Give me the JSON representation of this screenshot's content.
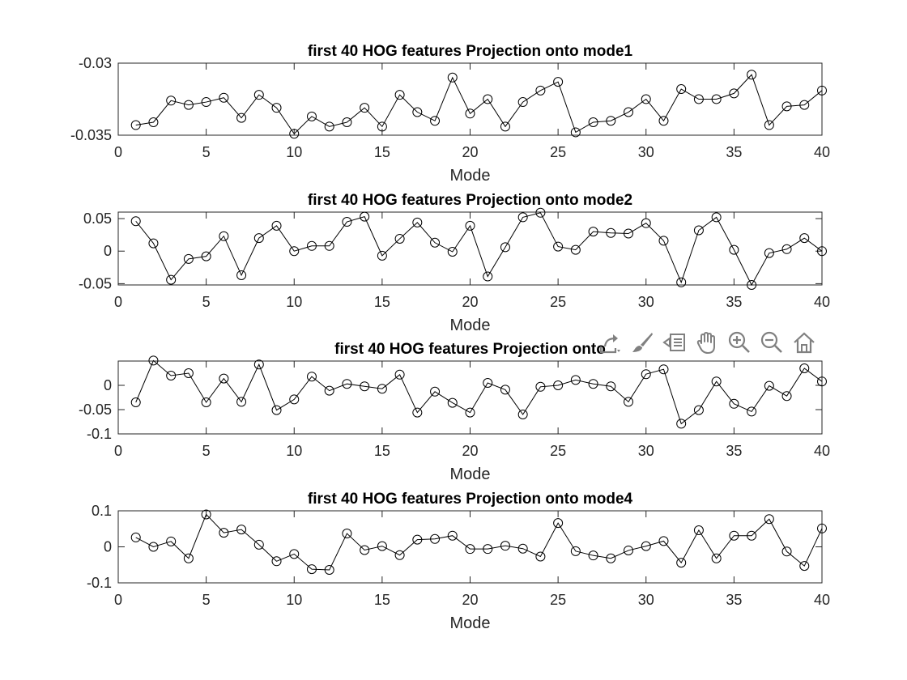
{
  "toolbar": {
    "icons": [
      "export-icon",
      "brush-icon",
      "legend-icon",
      "pan-hand-icon",
      "zoom-in-icon",
      "zoom-out-icon",
      "home-icon"
    ],
    "icon_color": "#808080"
  },
  "chart_data": [
    {
      "type": "line",
      "title": "first 40 HOG features Projection onto mode1",
      "xlabel": "Mode",
      "ylabel": "",
      "xlim": [
        0,
        40
      ],
      "ylim": [
        -0.035,
        -0.03
      ],
      "xticks": [
        0,
        5,
        10,
        15,
        20,
        25,
        30,
        35,
        40
      ],
      "yticks": [
        -0.035,
        -0.03
      ],
      "ytick_labels": [
        "-0.035",
        "-0.03"
      ],
      "marker": "circle",
      "color": "#000000",
      "x": [
        1,
        2,
        3,
        4,
        5,
        6,
        7,
        8,
        9,
        10,
        11,
        12,
        13,
        14,
        15,
        16,
        17,
        18,
        19,
        20,
        21,
        22,
        23,
        24,
        25,
        26,
        27,
        28,
        29,
        30,
        31,
        32,
        33,
        34,
        35,
        36,
        37,
        38,
        39,
        40
      ],
      "values": [
        -0.0343,
        -0.0341,
        -0.0326,
        -0.0329,
        -0.0327,
        -0.0324,
        -0.0338,
        -0.0322,
        -0.0331,
        -0.0349,
        -0.0337,
        -0.0344,
        -0.0341,
        -0.0331,
        -0.0344,
        -0.0322,
        -0.0334,
        -0.034,
        -0.031,
        -0.0335,
        -0.0325,
        -0.0344,
        -0.0327,
        -0.0319,
        -0.0313,
        -0.0348,
        -0.0341,
        -0.034,
        -0.0334,
        -0.0325,
        -0.034,
        -0.0318,
        -0.0325,
        -0.0325,
        -0.0321,
        -0.0308,
        -0.0343,
        -0.033,
        -0.0329,
        -0.0319
      ]
    },
    {
      "type": "line",
      "title": "first 40 HOG features Projection onto mode2",
      "xlabel": "Mode",
      "ylabel": "",
      "xlim": [
        0,
        40
      ],
      "ylim": [
        -0.052,
        0.06
      ],
      "xticks": [
        0,
        5,
        10,
        15,
        20,
        25,
        30,
        35,
        40
      ],
      "yticks": [
        -0.05,
        0,
        0.05
      ],
      "ytick_labels": [
        "-0.05",
        "0",
        "0.05"
      ],
      "marker": "circle",
      "color": "#000000",
      "x": [
        1,
        2,
        3,
        4,
        5,
        6,
        7,
        8,
        9,
        10,
        11,
        12,
        13,
        14,
        15,
        16,
        17,
        18,
        19,
        20,
        21,
        22,
        23,
        24,
        25,
        26,
        27,
        28,
        29,
        30,
        31,
        32,
        33,
        34,
        35,
        36,
        37,
        38,
        39,
        40
      ],
      "values": [
        0.046,
        0.012,
        -0.044,
        -0.012,
        -0.008,
        0.023,
        -0.037,
        0.02,
        0.039,
        0.0,
        0.008,
        0.008,
        0.045,
        0.053,
        -0.007,
        0.019,
        0.044,
        0.013,
        -0.001,
        0.039,
        -0.039,
        0.006,
        0.052,
        0.059,
        0.007,
        0.002,
        0.03,
        0.028,
        0.027,
        0.043,
        0.016,
        -0.048,
        0.032,
        0.052,
        0.002,
        -0.052,
        -0.003,
        0.003,
        0.02,
        0.0
      ]
    },
    {
      "type": "line",
      "title": "first 40 HOG features Projection onto",
      "xlabel": "Mode",
      "ylabel": "",
      "xlim": [
        0,
        40
      ],
      "ylim": [
        -0.1,
        0.05
      ],
      "xticks": [
        0,
        5,
        10,
        15,
        20,
        25,
        30,
        35,
        40
      ],
      "yticks": [
        -0.1,
        -0.05,
        0
      ],
      "ytick_labels": [
        "-0.1",
        "-0.05",
        "0"
      ],
      "marker": "circle",
      "color": "#000000",
      "x": [
        1,
        2,
        3,
        4,
        5,
        6,
        7,
        8,
        9,
        10,
        11,
        12,
        13,
        14,
        15,
        16,
        17,
        18,
        19,
        20,
        21,
        22,
        23,
        24,
        25,
        26,
        27,
        28,
        29,
        30,
        31,
        32,
        33,
        34,
        35,
        36,
        37,
        38,
        39,
        40
      ],
      "values": [
        -0.035,
        0.051,
        0.02,
        0.025,
        -0.035,
        0.014,
        -0.034,
        0.043,
        -0.051,
        -0.029,
        0.018,
        -0.011,
        0.003,
        -0.002,
        -0.007,
        0.022,
        -0.056,
        -0.013,
        -0.036,
        -0.056,
        0.005,
        -0.009,
        -0.06,
        -0.003,
        0.0,
        0.011,
        0.003,
        -0.002,
        -0.034,
        0.023,
        0.033,
        -0.079,
        -0.051,
        0.008,
        -0.038,
        -0.054,
        -0.001,
        -0.022,
        0.035,
        0.008
      ]
    },
    {
      "type": "line",
      "title": "first 40 HOG features Projection onto mode4",
      "xlabel": "Mode",
      "ylabel": "",
      "xlim": [
        0,
        40
      ],
      "ylim": [
        -0.1,
        0.1
      ],
      "xticks": [
        0,
        5,
        10,
        15,
        20,
        25,
        30,
        35,
        40
      ],
      "yticks": [
        -0.1,
        0,
        0.1
      ],
      "ytick_labels": [
        "-0.1",
        "0",
        "0.1"
      ],
      "marker": "circle",
      "color": "#000000",
      "x": [
        1,
        2,
        3,
        4,
        5,
        6,
        7,
        8,
        9,
        10,
        11,
        12,
        13,
        14,
        15,
        16,
        17,
        18,
        19,
        20,
        21,
        22,
        23,
        24,
        25,
        26,
        27,
        28,
        29,
        30,
        31,
        32,
        33,
        34,
        35,
        36,
        37,
        38,
        39,
        40
      ],
      "values": [
        0.026,
        0.0,
        0.015,
        -0.032,
        0.09,
        0.039,
        0.048,
        0.006,
        -0.04,
        -0.02,
        -0.062,
        -0.064,
        0.037,
        -0.009,
        0.002,
        -0.023,
        0.02,
        0.022,
        0.031,
        -0.006,
        -0.006,
        0.003,
        -0.005,
        -0.027,
        0.066,
        -0.012,
        -0.024,
        -0.032,
        -0.01,
        0.002,
        0.016,
        -0.044,
        0.046,
        -0.032,
        0.031,
        0.031,
        0.077,
        -0.013,
        -0.053,
        0.051
      ]
    }
  ]
}
